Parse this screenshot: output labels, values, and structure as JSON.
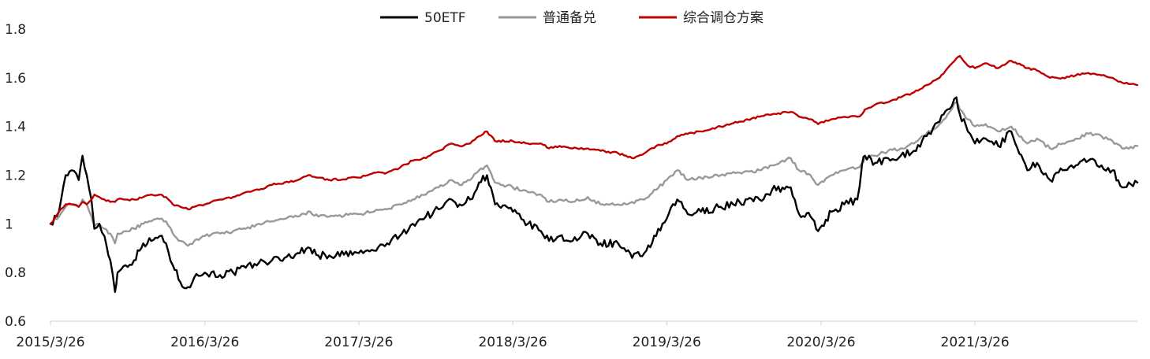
{
  "chart_data": {
    "type": "line",
    "title": "",
    "xlabel": "",
    "ylabel": "",
    "ylim": [
      0.6,
      1.8
    ],
    "yticks": [
      0.6,
      0.8,
      1,
      1.2,
      1.4,
      1.6,
      1.8
    ],
    "ytick_labels": [
      "0.6",
      "0.8",
      "1",
      "1.2",
      "1.4",
      "1.6",
      "1.8"
    ],
    "xlim": [
      "2015-03-26",
      "2022-04-15"
    ],
    "xticks": [
      "2015-03-26",
      "2016-03-26",
      "2017-03-26",
      "2018-03-26",
      "2019-03-26",
      "2020-03-26",
      "2021-03-26"
    ],
    "xtick_labels": [
      "2015/3/26",
      "2016/3/26",
      "2017/3/26",
      "2018/3/26",
      "2019/3/26",
      "2020/3/26",
      "2021/3/26"
    ],
    "grid": false,
    "legend_position": "top-center",
    "series": [
      {
        "name": "50ETF",
        "color": "#000000",
        "x": [
          "2015-03-26",
          "2015-04-15",
          "2015-05-01",
          "2015-05-15",
          "2015-06-01",
          "2015-06-10",
          "2015-06-20",
          "2015-07-01",
          "2015-07-08",
          "2015-07-20",
          "2015-08-01",
          "2015-08-15",
          "2015-08-26",
          "2015-09-01",
          "2015-09-20",
          "2015-10-10",
          "2015-11-01",
          "2015-11-20",
          "2015-12-10",
          "2015-12-25",
          "2016-01-10",
          "2016-01-28",
          "2016-02-15",
          "2016-03-01",
          "2016-03-26",
          "2016-05-01",
          "2016-06-01",
          "2016-07-01",
          "2016-08-01",
          "2016-09-01",
          "2016-10-01",
          "2016-11-01",
          "2016-12-01",
          "2016-12-20",
          "2017-01-15",
          "2017-03-26",
          "2017-05-01",
          "2017-06-01",
          "2017-07-01",
          "2017-08-01",
          "2017-09-01",
          "2017-10-01",
          "2017-11-01",
          "2017-11-20",
          "2017-12-15",
          "2018-01-05",
          "2018-01-24",
          "2018-02-12",
          "2018-03-26",
          "2018-05-01",
          "2018-06-01",
          "2018-06-20",
          "2018-07-15",
          "2018-08-15",
          "2018-09-20",
          "2018-10-20",
          "2018-12-01",
          "2019-01-03",
          "2019-02-01",
          "2019-03-01",
          "2019-03-26",
          "2019-04-20",
          "2019-05-15",
          "2019-06-15",
          "2019-08-01",
          "2019-09-15",
          "2019-11-01",
          "2019-12-01",
          "2020-01-14",
          "2020-02-03",
          "2020-03-01",
          "2020-03-19",
          "2020-04-20",
          "2020-05-20",
          "2020-06-20",
          "2020-07-01",
          "2020-07-08",
          "2020-08-01",
          "2020-09-01",
          "2020-10-01",
          "2020-11-01",
          "2020-12-01",
          "2021-01-01",
          "2021-01-20",
          "2021-02-10",
          "2021-02-18",
          "2021-03-09",
          "2021-03-26",
          "2021-04-20",
          "2021-05-20",
          "2021-06-20",
          "2021-07-28",
          "2021-08-20",
          "2021-09-20",
          "2021-10-20",
          "2021-11-20",
          "2021-12-20",
          "2022-01-20",
          "2022-02-15",
          "2022-03-10",
          "2022-04-15"
        ],
        "values": [
          1.0,
          1.05,
          1.2,
          1.22,
          1.18,
          1.28,
          1.2,
          1.1,
          0.98,
          1.0,
          0.95,
          0.85,
          0.72,
          0.8,
          0.83,
          0.85,
          0.92,
          0.93,
          0.95,
          0.92,
          0.83,
          0.76,
          0.74,
          0.78,
          0.8,
          0.79,
          0.8,
          0.82,
          0.84,
          0.85,
          0.86,
          0.88,
          0.9,
          0.87,
          0.87,
          0.88,
          0.89,
          0.92,
          0.95,
          1.0,
          1.03,
          1.06,
          1.1,
          1.08,
          1.1,
          1.17,
          1.2,
          1.08,
          1.05,
          1.0,
          0.97,
          0.93,
          0.95,
          0.93,
          0.96,
          0.92,
          0.92,
          0.86,
          0.88,
          0.95,
          1.02,
          1.1,
          1.04,
          1.05,
          1.07,
          1.09,
          1.1,
          1.14,
          1.15,
          1.04,
          1.03,
          0.97,
          1.05,
          1.08,
          1.1,
          1.24,
          1.28,
          1.25,
          1.27,
          1.28,
          1.3,
          1.36,
          1.42,
          1.47,
          1.52,
          1.45,
          1.38,
          1.33,
          1.35,
          1.32,
          1.38,
          1.22,
          1.25,
          1.18,
          1.22,
          1.24,
          1.26,
          1.24,
          1.22,
          1.15,
          1.17
        ]
      },
      {
        "name": "普通备兑",
        "color": "#999999",
        "x": [
          "2015-03-26",
          "2015-04-15",
          "2015-05-01",
          "2015-05-15",
          "2015-06-01",
          "2015-06-10",
          "2015-06-20",
          "2015-07-01",
          "2015-07-08",
          "2015-07-20",
          "2015-08-01",
          "2015-08-15",
          "2015-08-26",
          "2015-09-01",
          "2015-09-20",
          "2015-10-10",
          "2015-11-01",
          "2015-11-20",
          "2015-12-10",
          "2015-12-25",
          "2016-01-10",
          "2016-01-28",
          "2016-02-15",
          "2016-03-01",
          "2016-03-26",
          "2016-05-01",
          "2016-06-01",
          "2016-07-01",
          "2016-08-01",
          "2016-09-01",
          "2016-10-01",
          "2016-11-01",
          "2016-12-01",
          "2016-12-20",
          "2017-01-15",
          "2017-03-26",
          "2017-05-01",
          "2017-06-01",
          "2017-07-01",
          "2017-08-01",
          "2017-09-01",
          "2017-10-01",
          "2017-11-01",
          "2017-11-20",
          "2017-12-15",
          "2018-01-05",
          "2018-01-24",
          "2018-02-12",
          "2018-03-26",
          "2018-05-01",
          "2018-06-01",
          "2018-06-20",
          "2018-07-15",
          "2018-08-15",
          "2018-09-20",
          "2018-10-20",
          "2018-12-01",
          "2019-01-03",
          "2019-02-01",
          "2019-03-01",
          "2019-03-26",
          "2019-04-20",
          "2019-05-15",
          "2019-06-15",
          "2019-08-01",
          "2019-09-15",
          "2019-11-01",
          "2019-12-01",
          "2020-01-14",
          "2020-02-03",
          "2020-03-01",
          "2020-03-19",
          "2020-04-20",
          "2020-05-20",
          "2020-06-20",
          "2020-07-01",
          "2020-07-08",
          "2020-08-01",
          "2020-09-01",
          "2020-10-01",
          "2020-11-01",
          "2020-12-01",
          "2021-01-01",
          "2021-01-20",
          "2021-02-10",
          "2021-02-18",
          "2021-03-09",
          "2021-03-26",
          "2021-04-20",
          "2021-05-20",
          "2021-06-20",
          "2021-07-28",
          "2021-08-20",
          "2021-09-20",
          "2021-10-20",
          "2021-11-20",
          "2021-12-20",
          "2022-01-20",
          "2022-02-15",
          "2022-03-10",
          "2022-04-15"
        ],
        "values": [
          1.0,
          1.03,
          1.07,
          1.08,
          1.07,
          1.1,
          1.08,
          1.03,
          0.99,
          1.0,
          0.98,
          0.96,
          0.92,
          0.96,
          0.97,
          0.98,
          1.0,
          1.01,
          1.02,
          1.01,
          0.96,
          0.93,
          0.91,
          0.93,
          0.95,
          0.96,
          0.97,
          0.98,
          1.0,
          1.01,
          1.02,
          1.03,
          1.05,
          1.03,
          1.03,
          1.04,
          1.05,
          1.06,
          1.08,
          1.1,
          1.12,
          1.15,
          1.18,
          1.16,
          1.18,
          1.22,
          1.24,
          1.17,
          1.15,
          1.13,
          1.12,
          1.09,
          1.1,
          1.09,
          1.11,
          1.08,
          1.08,
          1.09,
          1.1,
          1.14,
          1.18,
          1.22,
          1.18,
          1.19,
          1.2,
          1.21,
          1.22,
          1.24,
          1.27,
          1.22,
          1.2,
          1.16,
          1.2,
          1.22,
          1.23,
          1.25,
          1.27,
          1.28,
          1.3,
          1.31,
          1.33,
          1.37,
          1.41,
          1.45,
          1.5,
          1.47,
          1.43,
          1.4,
          1.41,
          1.38,
          1.4,
          1.33,
          1.35,
          1.31,
          1.33,
          1.35,
          1.37,
          1.36,
          1.34,
          1.31,
          1.32
        ]
      },
      {
        "name": "综合调仓方案",
        "color": "#c00000",
        "x": [
          "2015-03-26",
          "2015-04-15",
          "2015-05-01",
          "2015-05-15",
          "2015-06-01",
          "2015-06-10",
          "2015-06-20",
          "2015-07-01",
          "2015-07-08",
          "2015-07-20",
          "2015-08-01",
          "2015-08-15",
          "2015-08-26",
          "2015-09-01",
          "2015-09-20",
          "2015-10-10",
          "2015-11-01",
          "2015-11-20",
          "2015-12-10",
          "2015-12-25",
          "2016-01-10",
          "2016-01-28",
          "2016-02-15",
          "2016-03-01",
          "2016-03-26",
          "2016-05-01",
          "2016-06-01",
          "2016-07-01",
          "2016-08-01",
          "2016-09-01",
          "2016-10-01",
          "2016-11-01",
          "2016-12-01",
          "2016-12-20",
          "2017-01-15",
          "2017-03-26",
          "2017-05-01",
          "2017-06-01",
          "2017-07-01",
          "2017-08-01",
          "2017-09-01",
          "2017-10-01",
          "2017-11-01",
          "2017-11-20",
          "2017-12-15",
          "2018-01-05",
          "2018-01-24",
          "2018-02-12",
          "2018-03-26",
          "2018-05-01",
          "2018-06-01",
          "2018-06-20",
          "2018-07-15",
          "2018-08-15",
          "2018-09-20",
          "2018-10-20",
          "2018-12-01",
          "2019-01-03",
          "2019-02-01",
          "2019-03-01",
          "2019-03-26",
          "2019-04-20",
          "2019-05-15",
          "2019-06-15",
          "2019-08-01",
          "2019-09-15",
          "2019-11-01",
          "2019-12-01",
          "2020-01-14",
          "2020-02-03",
          "2020-03-01",
          "2020-03-19",
          "2020-04-20",
          "2020-05-20",
          "2020-06-20",
          "2020-07-01",
          "2020-07-08",
          "2020-08-01",
          "2020-09-01",
          "2020-10-01",
          "2020-11-01",
          "2020-12-01",
          "2021-01-01",
          "2021-01-20",
          "2021-02-10",
          "2021-02-18",
          "2021-03-09",
          "2021-03-26",
          "2021-04-20",
          "2021-05-20",
          "2021-06-20",
          "2021-07-28",
          "2021-08-20",
          "2021-09-20",
          "2021-10-20",
          "2021-11-20",
          "2021-12-20",
          "2022-01-20",
          "2022-02-15",
          "2022-03-10",
          "2022-04-15"
        ],
        "values": [
          1.0,
          1.05,
          1.08,
          1.08,
          1.07,
          1.09,
          1.08,
          1.1,
          1.12,
          1.11,
          1.1,
          1.09,
          1.09,
          1.1,
          1.1,
          1.1,
          1.11,
          1.12,
          1.12,
          1.11,
          1.08,
          1.07,
          1.06,
          1.07,
          1.08,
          1.1,
          1.11,
          1.13,
          1.14,
          1.16,
          1.17,
          1.18,
          1.2,
          1.19,
          1.18,
          1.19,
          1.21,
          1.21,
          1.23,
          1.26,
          1.27,
          1.3,
          1.33,
          1.32,
          1.33,
          1.36,
          1.38,
          1.34,
          1.34,
          1.33,
          1.33,
          1.31,
          1.32,
          1.31,
          1.31,
          1.3,
          1.29,
          1.27,
          1.29,
          1.32,
          1.33,
          1.36,
          1.37,
          1.38,
          1.4,
          1.42,
          1.44,
          1.45,
          1.46,
          1.44,
          1.43,
          1.41,
          1.43,
          1.44,
          1.44,
          1.45,
          1.47,
          1.49,
          1.5,
          1.52,
          1.54,
          1.57,
          1.6,
          1.64,
          1.68,
          1.69,
          1.65,
          1.64,
          1.66,
          1.64,
          1.67,
          1.64,
          1.63,
          1.6,
          1.6,
          1.61,
          1.62,
          1.61,
          1.6,
          1.58,
          1.57
        ]
      }
    ]
  }
}
